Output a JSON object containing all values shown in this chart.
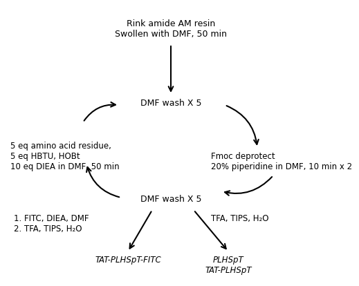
{
  "bg_color": "#ffffff",
  "text_color": "#000000",
  "top_text": "Rink amide AM resin\nSwollen with DMF, 50 min",
  "dmf_wash_top": "DMF wash X 5",
  "dmf_wash_bottom": "DMF wash X 5",
  "fmoc_text": "Fmoc deprotect\n20% piperidine in DMF, 10 min x 2",
  "left_text": "5 eq amino acid residue,\n5 eq HBTU, HOBt\n10 eq DIEA in DMF, 50 min",
  "bottom_left_label": "1. FITC, DIEA, DMF\n2. TFA, TIPS, H₂O",
  "bottom_right_label": "TFA, TIPS, H₂O",
  "product_left": "TAT-PLHSpT-FITC",
  "product_right": "PLHSpT\nTAT-PLHSpT",
  "fontsize": 9,
  "small_fontsize": 8.5
}
